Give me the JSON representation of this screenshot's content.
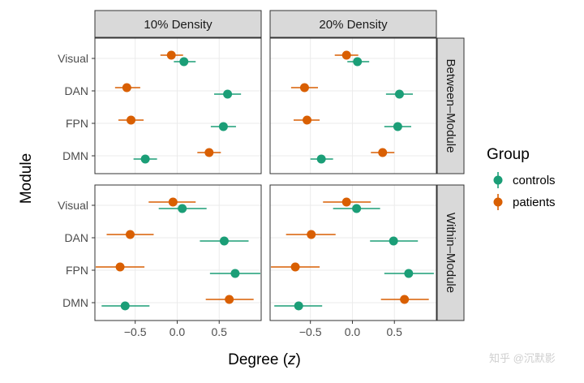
{
  "chart_data": {
    "type": "dot-errorbar",
    "xlabel": "Degree",
    "xlabel_var": "z",
    "ylabel": "Module",
    "xlim": [
      -0.98,
      1.0
    ],
    "xticks": [
      -0.5,
      0.0,
      0.5
    ],
    "xtick_labels": [
      "−0.5",
      "0.0",
      "0.5"
    ],
    "rows": [
      "Visual",
      "DAN",
      "FPN",
      "DMN"
    ],
    "col_facets": [
      "10% Density",
      "20% Density"
    ],
    "row_facets": [
      "Between–Module",
      "Within–Module"
    ],
    "legend": {
      "title": "Group",
      "entries": [
        {
          "name": "controls",
          "color": "#1b9e77"
        },
        {
          "name": "patients",
          "color": "#d95f02"
        }
      ]
    },
    "panels": [
      {
        "col": "10% Density",
        "row": "Between–Module",
        "series": [
          {
            "name": "controls",
            "points": [
              {
                "module": "Visual",
                "x": 0.08,
                "lo": -0.04,
                "hi": 0.22
              },
              {
                "module": "DAN",
                "x": 0.6,
                "lo": 0.44,
                "hi": 0.76
              },
              {
                "module": "FPN",
                "x": 0.55,
                "lo": 0.4,
                "hi": 0.7
              },
              {
                "module": "DMN",
                "x": -0.38,
                "lo": -0.52,
                "hi": -0.24
              }
            ]
          },
          {
            "name": "patients",
            "points": [
              {
                "module": "Visual",
                "x": -0.07,
                "lo": -0.2,
                "hi": 0.07
              },
              {
                "module": "DAN",
                "x": -0.6,
                "lo": -0.74,
                "hi": -0.44
              },
              {
                "module": "FPN",
                "x": -0.55,
                "lo": -0.7,
                "hi": -0.4
              },
              {
                "module": "DMN",
                "x": 0.38,
                "lo": 0.24,
                "hi": 0.52
              }
            ]
          }
        ]
      },
      {
        "col": "20% Density",
        "row": "Between–Module",
        "series": [
          {
            "name": "controls",
            "points": [
              {
                "module": "Visual",
                "x": 0.06,
                "lo": -0.06,
                "hi": 0.2
              },
              {
                "module": "DAN",
                "x": 0.56,
                "lo": 0.4,
                "hi": 0.72
              },
              {
                "module": "FPN",
                "x": 0.54,
                "lo": 0.38,
                "hi": 0.7
              },
              {
                "module": "DMN",
                "x": -0.37,
                "lo": -0.5,
                "hi": -0.23
              }
            ]
          },
          {
            "name": "patients",
            "points": [
              {
                "module": "Visual",
                "x": -0.07,
                "lo": -0.21,
                "hi": 0.07
              },
              {
                "module": "DAN",
                "x": -0.57,
                "lo": -0.73,
                "hi": -0.41
              },
              {
                "module": "FPN",
                "x": -0.54,
                "lo": -0.7,
                "hi": -0.39
              },
              {
                "module": "DMN",
                "x": 0.36,
                "lo": 0.22,
                "hi": 0.5
              }
            ]
          }
        ]
      },
      {
        "col": "10% Density",
        "row": "Within–Module",
        "series": [
          {
            "name": "controls",
            "points": [
              {
                "module": "Visual",
                "x": 0.06,
                "lo": -0.22,
                "hi": 0.35
              },
              {
                "module": "DAN",
                "x": 0.56,
                "lo": 0.27,
                "hi": 0.85
              },
              {
                "module": "FPN",
                "x": 0.69,
                "lo": 0.39,
                "hi": 0.99
              },
              {
                "module": "DMN",
                "x": -0.62,
                "lo": -0.9,
                "hi": -0.33
              }
            ]
          },
          {
            "name": "patients",
            "points": [
              {
                "module": "Visual",
                "x": -0.05,
                "lo": -0.34,
                "hi": 0.22
              },
              {
                "module": "DAN",
                "x": -0.56,
                "lo": -0.84,
                "hi": -0.28
              },
              {
                "module": "FPN",
                "x": -0.68,
                "lo": -0.97,
                "hi": -0.39
              },
              {
                "module": "DMN",
                "x": 0.62,
                "lo": 0.34,
                "hi": 0.91
              }
            ]
          }
        ]
      },
      {
        "col": "20% Density",
        "row": "Within–Module",
        "series": [
          {
            "name": "controls",
            "points": [
              {
                "module": "Visual",
                "x": 0.05,
                "lo": -0.23,
                "hi": 0.33
              },
              {
                "module": "DAN",
                "x": 0.49,
                "lo": 0.21,
                "hi": 0.78
              },
              {
                "module": "FPN",
                "x": 0.67,
                "lo": 0.38,
                "hi": 0.97
              },
              {
                "module": "DMN",
                "x": -0.64,
                "lo": -0.93,
                "hi": -0.36
              }
            ]
          },
          {
            "name": "patients",
            "points": [
              {
                "module": "Visual",
                "x": -0.07,
                "lo": -0.35,
                "hi": 0.22
              },
              {
                "module": "DAN",
                "x": -0.49,
                "lo": -0.79,
                "hi": -0.2
              },
              {
                "module": "FPN",
                "x": -0.68,
                "lo": -0.97,
                "hi": -0.39
              },
              {
                "module": "DMN",
                "x": 0.62,
                "lo": 0.34,
                "hi": 0.91
              }
            ]
          }
        ]
      }
    ]
  },
  "watermark": "知乎 @沉默影"
}
